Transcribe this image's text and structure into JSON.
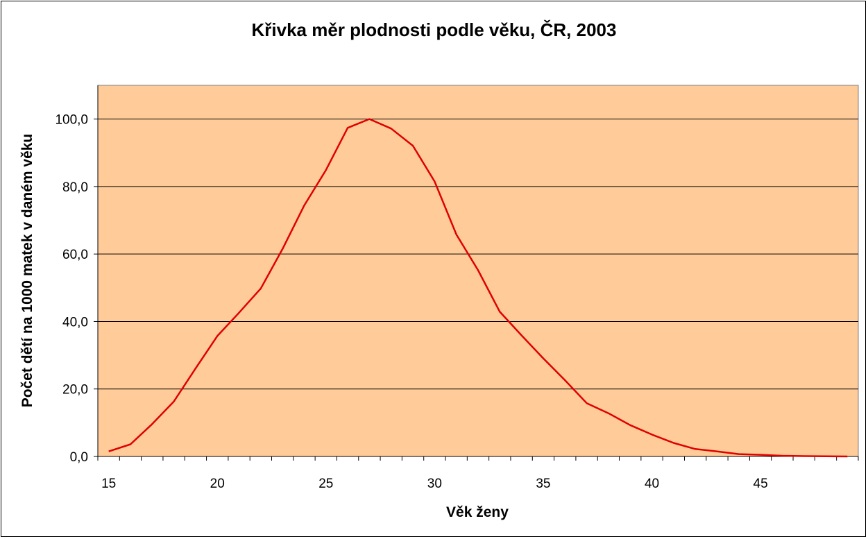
{
  "chart_data": {
    "type": "line",
    "title": "Křivka měr plodnosti podle věku, ČR, 2003",
    "xlabel": "Věk ženy",
    "ylabel": "Počet dětí na 1000 matek v daném věku",
    "xlim": [
      14.5,
      49.5
    ],
    "ylim": [
      0,
      110
    ],
    "x_ticks": [
      15,
      20,
      25,
      30,
      35,
      40,
      45
    ],
    "x_tick_labels": [
      "15",
      "20",
      "25",
      "30",
      "35",
      "40",
      "45"
    ],
    "y_ticks": [
      0,
      20,
      40,
      60,
      80,
      100
    ],
    "y_tick_labels": [
      "0,0",
      "20,0",
      "40,0",
      "60,0",
      "80,0",
      "100,0"
    ],
    "grid": "horizontal",
    "plot_background": "#FFCC99",
    "series": [
      {
        "color": "#E00000",
        "x": [
          15,
          16,
          17,
          18,
          19,
          20,
          21,
          22,
          23,
          24,
          25,
          26,
          27,
          28,
          29,
          30,
          31,
          32,
          33,
          34,
          35,
          36,
          37,
          38,
          39,
          40,
          41,
          42,
          43,
          44,
          45,
          46,
          47,
          48,
          49
        ],
        "values": [
          1.5,
          3.6,
          9.6,
          16.3,
          26.1,
          35.7,
          42.6,
          49.8,
          61.5,
          74.4,
          84.9,
          97.4,
          100.0,
          97.2,
          92.1,
          81.5,
          65.8,
          55.2,
          42.9,
          35.9,
          29.1,
          22.6,
          15.8,
          12.8,
          9.3,
          6.5,
          4.0,
          2.2,
          1.5,
          0.7,
          0.5,
          0.2,
          0.1,
          0.05,
          0.0
        ]
      }
    ]
  }
}
